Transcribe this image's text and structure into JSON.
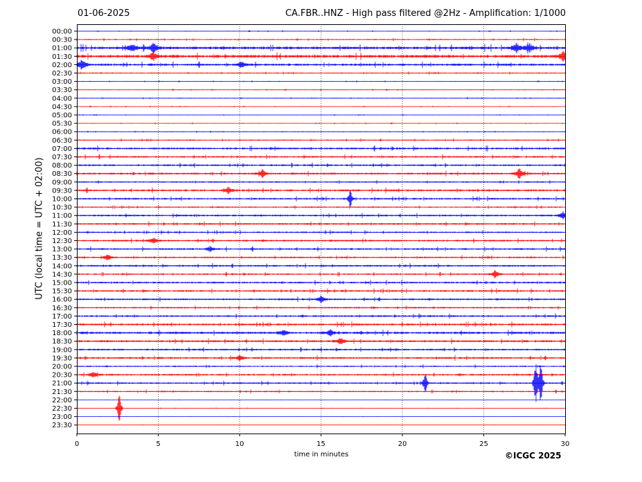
{
  "header": {
    "date": "01-06-2025",
    "title": "CA.FBR..HNZ - High pass filtered @2Hz - Amplification: 1/1000"
  },
  "footer": {
    "copyright": "©ICGC 2025"
  },
  "chart_data": {
    "type": "line",
    "title": "CA.FBR..HNZ - High pass filtered @2Hz - Amplification: 1/1000",
    "xlabel": "time in minutes",
    "ylabel": "UTC (local time = UTC + 02:00)",
    "xlim": [
      0,
      30
    ],
    "x_ticks": [
      "0",
      "5",
      "10",
      "15",
      "20",
      "25",
      "30"
    ],
    "row_labels": [
      "00:00",
      "00:30",
      "01:00",
      "01:30",
      "02:00",
      "02:30",
      "03:00",
      "03:30",
      "04:00",
      "04:30",
      "05:00",
      "05:30",
      "06:00",
      "06:30",
      "07:00",
      "07:30",
      "08:00",
      "08:30",
      "09:00",
      "09:30",
      "10:00",
      "10:30",
      "11:00",
      "11:30",
      "12:00",
      "12:30",
      "13:00",
      "13:30",
      "14:00",
      "14:30",
      "15:00",
      "15:30",
      "16:00",
      "16:30",
      "17:00",
      "17:30",
      "18:00",
      "18:30",
      "19:00",
      "19:30",
      "20:00",
      "20:30",
      "21:00",
      "21:30",
      "22:00",
      "22:30",
      "23:00",
      "23:30"
    ],
    "grid": "vertical dotted lines every 5 minutes",
    "colors": {
      "even_rows": "#0000ff",
      "odd_rows": "#ff0000"
    },
    "noise_level": [
      0.3,
      0.5,
      1.2,
      1.3,
      1.0,
      0.5,
      0.3,
      0.3,
      0.3,
      0.3,
      0.3,
      0.3,
      0.3,
      0.5,
      0.9,
      0.8,
      0.8,
      0.9,
      0.6,
      0.9,
      0.8,
      0.6,
      0.8,
      0.8,
      0.7,
      0.8,
      0.8,
      0.7,
      0.8,
      0.7,
      0.8,
      0.8,
      0.8,
      0.7,
      0.8,
      0.9,
      1.0,
      0.9,
      0.8,
      0.9,
      0.6,
      0.8,
      0.7,
      0.6,
      0.1,
      0.2,
      0.1,
      0.1
    ],
    "events": [
      {
        "row": 2,
        "minute": 3.4,
        "amplitude": 6
      },
      {
        "row": 2,
        "minute": 4.7,
        "amplitude": 8
      },
      {
        "row": 2,
        "minute": 27.0,
        "amplitude": 7
      },
      {
        "row": 2,
        "minute": 27.8,
        "amplitude": 7
      },
      {
        "row": 3,
        "minute": 4.7,
        "amplitude": 6
      },
      {
        "row": 3,
        "minute": 29.9,
        "amplitude": 8
      },
      {
        "row": 4,
        "minute": 0.3,
        "amplitude": 7
      },
      {
        "row": 4,
        "minute": 10.1,
        "amplitude": 5
      },
      {
        "row": 17,
        "minute": 11.4,
        "amplitude": 6
      },
      {
        "row": 17,
        "minute": 27.2,
        "amplitude": 7
      },
      {
        "row": 19,
        "minute": 9.3,
        "amplitude": 5
      },
      {
        "row": 20,
        "minute": 16.8,
        "amplitude": 16
      },
      {
        "row": 22,
        "minute": 29.9,
        "amplitude": 6
      },
      {
        "row": 25,
        "minute": 4.7,
        "amplitude": 4
      },
      {
        "row": 26,
        "minute": 8.2,
        "amplitude": 4
      },
      {
        "row": 27,
        "minute": 1.9,
        "amplitude": 5
      },
      {
        "row": 29,
        "minute": 25.7,
        "amplitude": 5
      },
      {
        "row": 32,
        "minute": 15.0,
        "amplitude": 5
      },
      {
        "row": 36,
        "minute": 12.7,
        "amplitude": 5
      },
      {
        "row": 36,
        "minute": 15.6,
        "amplitude": 5
      },
      {
        "row": 37,
        "minute": 16.2,
        "amplitude": 5
      },
      {
        "row": 39,
        "minute": 10.0,
        "amplitude": 4
      },
      {
        "row": 41,
        "minute": 1.0,
        "amplitude": 4
      },
      {
        "row": 42,
        "minute": 21.4,
        "amplitude": 22
      },
      {
        "row": 42,
        "minute": 28.2,
        "amplitude": 45
      },
      {
        "row": 42,
        "minute": 28.5,
        "amplitude": 40
      },
      {
        "row": 45,
        "minute": 2.6,
        "amplitude": 30
      }
    ]
  }
}
